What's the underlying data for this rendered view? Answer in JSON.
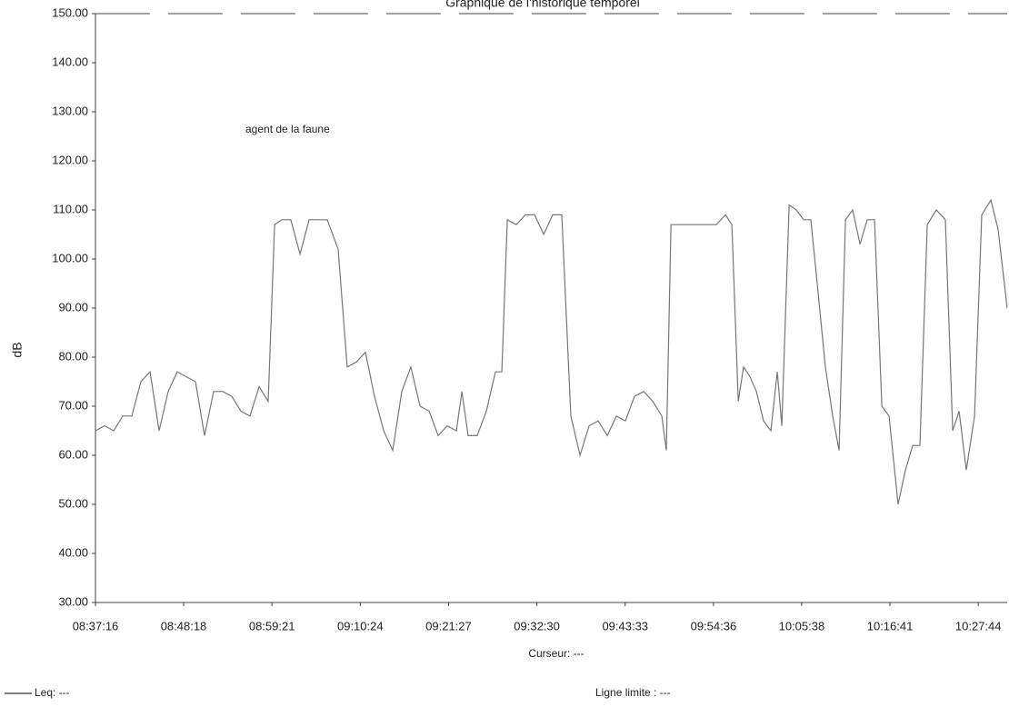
{
  "chart_data": {
    "type": "line",
    "title": "Graphique de l'historique temporel",
    "y_label": "dB",
    "x_label": "Curseur: ---",
    "annotation": "agent de la faune",
    "limit_label": "Ligne limite : ---",
    "ylim": [
      30,
      150
    ],
    "yticks": [
      {
        "value": 30,
        "label": "30.00"
      },
      {
        "value": 40,
        "label": "40.00"
      },
      {
        "value": 50,
        "label": "50.00"
      },
      {
        "value": 60,
        "label": "60.00"
      },
      {
        "value": 70,
        "label": "70.00"
      },
      {
        "value": 80,
        "label": "80.00"
      },
      {
        "value": 90,
        "label": "90.00"
      },
      {
        "value": 100,
        "label": "100.00"
      },
      {
        "value": 110,
        "label": "110.00"
      },
      {
        "value": 120,
        "label": "120.00"
      },
      {
        "value": 130,
        "label": "130.00"
      },
      {
        "value": 140,
        "label": "140.00"
      },
      {
        "value": 150,
        "label": "150.00"
      }
    ],
    "xlim": [
      31036,
      37881
    ],
    "xticks": [
      {
        "value": 31036,
        "label": "08:37:16"
      },
      {
        "value": 31698,
        "label": "08:48:18"
      },
      {
        "value": 32361,
        "label": "08:59:21"
      },
      {
        "value": 33024,
        "label": "09:10:24"
      },
      {
        "value": 33687,
        "label": "09:21:27"
      },
      {
        "value": 34350,
        "label": "09:32:30"
      },
      {
        "value": 35013,
        "label": "09:43:33"
      },
      {
        "value": 35676,
        "label": "09:54:36"
      },
      {
        "value": 36338,
        "label": "10:05:38"
      },
      {
        "value": 37001,
        "label": "10:16:41"
      },
      {
        "value": 37664,
        "label": "10:27:44"
      }
    ],
    "x": [
      31036,
      31104,
      31173,
      31241,
      31309,
      31377,
      31446,
      31514,
      31582,
      31650,
      31719,
      31787,
      31855,
      31923,
      31992,
      32060,
      32128,
      32196,
      32265,
      32333,
      32381,
      32435,
      32503,
      32572,
      32640,
      32708,
      32776,
      32858,
      32926,
      32995,
      33063,
      33131,
      33200,
      33268,
      33336,
      33404,
      33473,
      33541,
      33609,
      33677,
      33746,
      33787,
      33834,
      33902,
      33971,
      34039,
      34087,
      34128,
      34196,
      34264,
      34333,
      34401,
      34469,
      34537,
      34605,
      34674,
      34742,
      34810,
      34879,
      34947,
      35015,
      35083,
      35152,
      35220,
      35288,
      35322,
      35357,
      35425,
      35493,
      35561,
      35629,
      35698,
      35766,
      35814,
      35862,
      35902,
      35950,
      35998,
      36052,
      36107,
      36155,
      36189,
      36244,
      36298,
      36353,
      36407,
      36462,
      36516,
      36571,
      36619,
      36667,
      36721,
      36776,
      36830,
      36885,
      36940,
      36994,
      37062,
      37117,
      37172,
      37226,
      37281,
      37349,
      37417,
      37472,
      37520,
      37574,
      37636,
      37690,
      37759,
      37813,
      37881
    ],
    "series": [
      {
        "name": "Leq: ---",
        "color": "#777777",
        "values": [
          65,
          66,
          65,
          68,
          68,
          75,
          77,
          65,
          73,
          77,
          76,
          75,
          64,
          73,
          73,
          72,
          69,
          68,
          74,
          71,
          107,
          108,
          108,
          101,
          108,
          108,
          108,
          102,
          78,
          79,
          81,
          72,
          65,
          61,
          73,
          78,
          70,
          69,
          64,
          66,
          65,
          73,
          64,
          64,
          69,
          77,
          77,
          108,
          107,
          109,
          109,
          105,
          109,
          109,
          68,
          60,
          66,
          67,
          64,
          68,
          67,
          72,
          73,
          71,
          68,
          61,
          107,
          107,
          107,
          107,
          107,
          107,
          109,
          107,
          71,
          78,
          76,
          73,
          67,
          65,
          77,
          66,
          111,
          110,
          108,
          108,
          93,
          78,
          68,
          61,
          108,
          110,
          103,
          108,
          108,
          70,
          68,
          50,
          57,
          62,
          62,
          107,
          110,
          108,
          65,
          69,
          57,
          68,
          109,
          112,
          106,
          90
        ]
      }
    ]
  }
}
